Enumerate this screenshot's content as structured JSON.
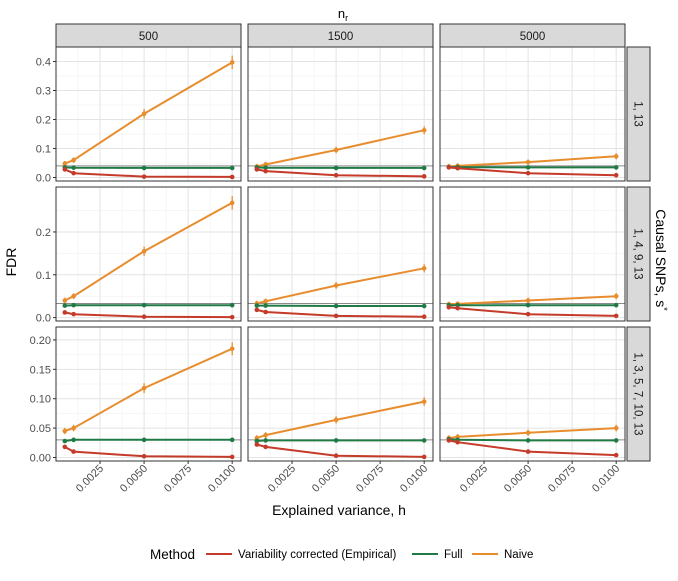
{
  "chart_data": {
    "type": "line",
    "top_label_prefix": "n",
    "top_label_sub": "r",
    "right_label": "Causal SNPs, s",
    "right_label_sup": "*",
    "xlabel": "Explained variance, h",
    "ylabel": "FDR",
    "x_ticks": [
      0.0025,
      0.005,
      0.0075,
      0.01
    ],
    "x_tick_labels": [
      "0.0025",
      "0.0050",
      "0.0075",
      "0.0100"
    ],
    "xlim": [
      0,
      0.0105
    ],
    "x": [
      0.0005,
      0.001,
      0.005,
      0.01
    ],
    "columns": [
      "500",
      "1500",
      "5000"
    ],
    "rows": [
      {
        "label": "1, 13",
        "ylim": [
          -0.012,
          0.45
        ],
        "y_ticks": [
          0.0,
          0.1,
          0.2,
          0.3,
          0.4
        ],
        "y_tick_labels": [
          "0.0",
          "0.1",
          "0.2",
          "0.3",
          "0.4"
        ],
        "hline": 0.04,
        "panels": [
          {
            "Variability corrected (Empirical)": [
              0.028,
              0.015,
              0.003,
              0.002
            ],
            "Full": [
              0.035,
              0.034,
              0.033,
              0.033
            ],
            "Naive": [
              0.048,
              0.06,
              0.22,
              0.397
            ]
          },
          {
            "Variability corrected (Empirical)": [
              0.028,
              0.022,
              0.008,
              0.004
            ],
            "Full": [
              0.035,
              0.034,
              0.033,
              0.033
            ],
            "Naive": [
              0.038,
              0.045,
              0.095,
              0.163
            ]
          },
          {
            "Variability corrected (Empirical)": [
              0.035,
              0.032,
              0.015,
              0.008
            ],
            "Full": [
              0.036,
              0.036,
              0.035,
              0.035
            ],
            "Naive": [
              0.038,
              0.04,
              0.053,
              0.073
            ]
          }
        ]
      },
      {
        "label": "1, 4, 9, 13",
        "ylim": [
          -0.008,
          0.305
        ],
        "y_ticks": [
          0.0,
          0.1,
          0.2
        ],
        "y_tick_labels": [
          "0.0",
          "0.1",
          "0.2"
        ],
        "hline": 0.033,
        "panels": [
          {
            "Variability corrected (Empirical)": [
              0.012,
              0.008,
              0.002,
              0.001
            ],
            "Full": [
              0.028,
              0.029,
              0.029,
              0.029
            ],
            "Naive": [
              0.04,
              0.05,
              0.155,
              0.268
            ]
          },
          {
            "Variability corrected (Empirical)": [
              0.018,
              0.013,
              0.004,
              0.002
            ],
            "Full": [
              0.028,
              0.028,
              0.027,
              0.027
            ],
            "Naive": [
              0.033,
              0.038,
              0.075,
              0.115
            ]
          },
          {
            "Variability corrected (Empirical)": [
              0.024,
              0.022,
              0.008,
              0.004
            ],
            "Full": [
              0.029,
              0.029,
              0.029,
              0.029
            ],
            "Naive": [
              0.031,
              0.032,
              0.04,
              0.05
            ]
          }
        ]
      },
      {
        "label": "1, 3, 5, 7, 10, 13",
        "ylim": [
          -0.006,
          0.222
        ],
        "y_ticks": [
          0.0,
          0.05,
          0.1,
          0.15,
          0.2
        ],
        "y_tick_labels": [
          "0.00",
          "0.05",
          "0.10",
          "0.15",
          "0.20"
        ],
        "hline": 0.03,
        "panels": [
          {
            "Variability corrected (Empirical)": [
              0.018,
              0.01,
              0.002,
              0.001
            ],
            "Full": [
              0.028,
              0.03,
              0.03,
              0.03
            ],
            "Naive": [
              0.045,
              0.05,
              0.118,
              0.185
            ]
          },
          {
            "Variability corrected (Empirical)": [
              0.022,
              0.018,
              0.003,
              0.001
            ],
            "Full": [
              0.028,
              0.029,
              0.029,
              0.029
            ],
            "Naive": [
              0.033,
              0.038,
              0.064,
              0.095
            ]
          },
          {
            "Variability corrected (Empirical)": [
              0.029,
              0.026,
              0.01,
              0.004
            ],
            "Full": [
              0.031,
              0.03,
              0.029,
              0.029
            ],
            "Naive": [
              0.033,
              0.035,
              0.042,
              0.05
            ]
          }
        ]
      }
    ],
    "legend": {
      "title": "Method",
      "position": "bottom",
      "entries": [
        {
          "name": "Variability corrected (Empirical)",
          "color": "#c43b2a"
        },
        {
          "name": "Full",
          "color": "#1f7a45"
        },
        {
          "name": "Naive",
          "color": "#e88d2e"
        }
      ]
    }
  }
}
